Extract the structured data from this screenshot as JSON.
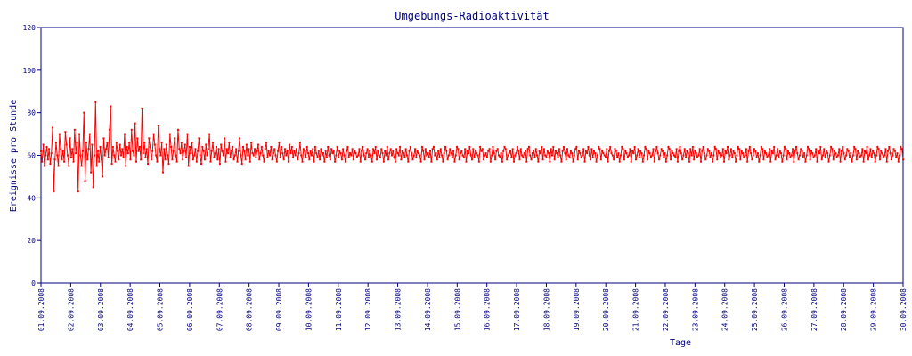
{
  "chart_data": {
    "type": "line",
    "title": "Umgebungs-Radioaktivität",
    "xlabel": "Tage",
    "ylabel": "Ereignisse pro Stunde",
    "ylim": [
      0,
      120
    ],
    "yticks": [
      "0",
      "20",
      "40",
      "60",
      "80",
      "100",
      "120"
    ],
    "ytick_values": [
      0,
      20,
      40,
      60,
      80,
      100,
      120
    ],
    "xticks": [
      "01.09.2008",
      "02.09.2008",
      "03.09.2008",
      "04.09.2008",
      "05.09.2008",
      "06.09.2008",
      "07.09.2008",
      "08.09.2008",
      "09.09.2008",
      "10.09.2008",
      "11.09.2008",
      "12.09.2008",
      "13.09.2008",
      "14.09.2008",
      "15.09.2008",
      "16.09.2008",
      "17.09.2008",
      "18.09.2008",
      "19.09.2008",
      "20.09.2008",
      "21.09.2008",
      "22.09.2008",
      "23.09.2008",
      "24.09.2008",
      "25.09.2008",
      "26.09.2008",
      "27.09.2008",
      "28.09.2008",
      "29.09.2008",
      "30.09.2008"
    ],
    "x_unit": "days since 01.09.2008",
    "grid": false,
    "colors": {
      "line": "#ff0000",
      "axes": "#000080",
      "text": "#000080"
    },
    "series": [
      {
        "name": "",
        "values": [
          62,
          57,
          65,
          55,
          60,
          64,
          58,
          63,
          56,
          61,
          73,
          43,
          58,
          66,
          60,
          55,
          70,
          63,
          58,
          62,
          57,
          71,
          65,
          60,
          55,
          68,
          59,
          63,
          57,
          72,
          61,
          66,
          43,
          70,
          60,
          55,
          62,
          80,
          48,
          66,
          58,
          63,
          70,
          52,
          65,
          45,
          60,
          85,
          55,
          62,
          57,
          64,
          58,
          50,
          68,
          60,
          63,
          66,
          59,
          72,
          83,
          56,
          64,
          60,
          57,
          66,
          62,
          58,
          65,
          60,
          63,
          59,
          70,
          55,
          64,
          61,
          66,
          58,
          72,
          62,
          60,
          75,
          57,
          68,
          62,
          64,
          58,
          82,
          61,
          66,
          59,
          63,
          56,
          68,
          64,
          58,
          62,
          70,
          65,
          60,
          57,
          74,
          63,
          60,
          66,
          52,
          63,
          58,
          65,
          60,
          56,
          70,
          64,
          58,
          62,
          68,
          60,
          57,
          72,
          63,
          61,
          66,
          58,
          62,
          65,
          59,
          70,
          55,
          64,
          61,
          66,
          58,
          60,
          63,
          57,
          62,
          68,
          60,
          56,
          64,
          62,
          58,
          65,
          60,
          63,
          70,
          57,
          62,
          66,
          59,
          61,
          64,
          58,
          63,
          56,
          65,
          62,
          60,
          68,
          57,
          63,
          61,
          66,
          59,
          62,
          64,
          58,
          60,
          63,
          57,
          62,
          68,
          60,
          56,
          64,
          62,
          58,
          65,
          60,
          63,
          57,
          66,
          61,
          60,
          63,
          59,
          62,
          65,
          58,
          61,
          64,
          60,
          57,
          63,
          66,
          59,
          62,
          60,
          64,
          58,
          61,
          63,
          60,
          57,
          62,
          66,
          59,
          64,
          61,
          58,
          63,
          60,
          62,
          57,
          65,
          61,
          64,
          59,
          62,
          60,
          63,
          58,
          61,
          66,
          60,
          57,
          63,
          62,
          59,
          64,
          61,
          58,
          62,
          60,
          63,
          57,
          64,
          61,
          59,
          62,
          58,
          63,
          60,
          61,
          57,
          62,
          59,
          64,
          60,
          58,
          63,
          61,
          62,
          57,
          60,
          64,
          59,
          62,
          61,
          58,
          63,
          60,
          57,
          62,
          64,
          59,
          61,
          60,
          63,
          58,
          62,
          61,
          59,
          60,
          63,
          57,
          62,
          64,
          60,
          58,
          61,
          63,
          59,
          62,
          60,
          57,
          63,
          61,
          64,
          58,
          62,
          60,
          59,
          63,
          61,
          57,
          62,
          60,
          64,
          58,
          61,
          63,
          60,
          62,
          59,
          57,
          63,
          61,
          60,
          64,
          58,
          62,
          61,
          59,
          63,
          60,
          57,
          62,
          64,
          61,
          58,
          60,
          63,
          59,
          62,
          61,
          60,
          57,
          64,
          62,
          58,
          63,
          60,
          61,
          59,
          62,
          57,
          63,
          64,
          60,
          61,
          58,
          62,
          59,
          63,
          60,
          57,
          61,
          64,
          62,
          58,
          60,
          63,
          61,
          59,
          62,
          57,
          60,
          64,
          63,
          58,
          61,
          62,
          60,
          59,
          63,
          57,
          62,
          61,
          64,
          60,
          58,
          63,
          59,
          62,
          61,
          60,
          57,
          64,
          62,
          63,
          58,
          60,
          61,
          59,
          62,
          63,
          57,
          60,
          64,
          61,
          58,
          62,
          63,
          60,
          59,
          61,
          57,
          62,
          64,
          63,
          58,
          60,
          61,
          62,
          59,
          63,
          57,
          60,
          61,
          64,
          62,
          58,
          63,
          60,
          59,
          61,
          62,
          57,
          63,
          64,
          60,
          58,
          61,
          62,
          59,
          63,
          60,
          57,
          62,
          61,
          64,
          58,
          63,
          60,
          59,
          62,
          61,
          57,
          63,
          60,
          64,
          58,
          62,
          61,
          59,
          63,
          60,
          57,
          62,
          64,
          61,
          58,
          63,
          60,
          59,
          62,
          61,
          57,
          60,
          63,
          64,
          58,
          62,
          61,
          59,
          60,
          63,
          57,
          62,
          61,
          64,
          60,
          58,
          63,
          59,
          62,
          61,
          57,
          60,
          64,
          63,
          58,
          62,
          61,
          60,
          59,
          63,
          57,
          62,
          64,
          61,
          60,
          58,
          63,
          62,
          59,
          61,
          57,
          60,
          64,
          63,
          58,
          62,
          61,
          59,
          60,
          63,
          57,
          62,
          61,
          64,
          58,
          60,
          63,
          59,
          62,
          61,
          57,
          60,
          64,
          63,
          58,
          62,
          61,
          59,
          60,
          63,
          57,
          62,
          64,
          61,
          58,
          60,
          63,
          62,
          59,
          61,
          57,
          60,
          64,
          63,
          58,
          62,
          61,
          60,
          59,
          63,
          57,
          62,
          64,
          61,
          58,
          60,
          63,
          59,
          62,
          61,
          57,
          63,
          60,
          64,
          58,
          62,
          61,
          59,
          60,
          63,
          57,
          62,
          64,
          61,
          58,
          60,
          63,
          62,
          59,
          61,
          57,
          60,
          64,
          63,
          58,
          62,
          61,
          59,
          60,
          63,
          57,
          62,
          61,
          64,
          58,
          60,
          63,
          59,
          62,
          61,
          57,
          60,
          64,
          63,
          58,
          62,
          61,
          59,
          60,
          63,
          57,
          62,
          64,
          61,
          58,
          60,
          63,
          62,
          59,
          61,
          57,
          60,
          64,
          63,
          58,
          62,
          61,
          59,
          60,
          63,
          57,
          62,
          61,
          64,
          58,
          60,
          63,
          59,
          62,
          61,
          57,
          60,
          64,
          63,
          58,
          62,
          61,
          59,
          60,
          63,
          57,
          62,
          64,
          61,
          58,
          60,
          63,
          62,
          59,
          61,
          57,
          60,
          64,
          63,
          58,
          62,
          61,
          59,
          60,
          63,
          57,
          62,
          61,
          64,
          58,
          60,
          63,
          59,
          62,
          61,
          57,
          60,
          64,
          63,
          58,
          62,
          61,
          59,
          60,
          63,
          57,
          62,
          64,
          61,
          58,
          60,
          63,
          62,
          59,
          61,
          57,
          60,
          64,
          63,
          58,
          62,
          61,
          59,
          60,
          63,
          57,
          62,
          61,
          64,
          58,
          60,
          63,
          59,
          62,
          61,
          57,
          60,
          64,
          63,
          58,
          62,
          61,
          59,
          60,
          63,
          57,
          62,
          64,
          61,
          58,
          60,
          63,
          62,
          59,
          61,
          57,
          60,
          64,
          63,
          58
        ]
      }
    ]
  }
}
